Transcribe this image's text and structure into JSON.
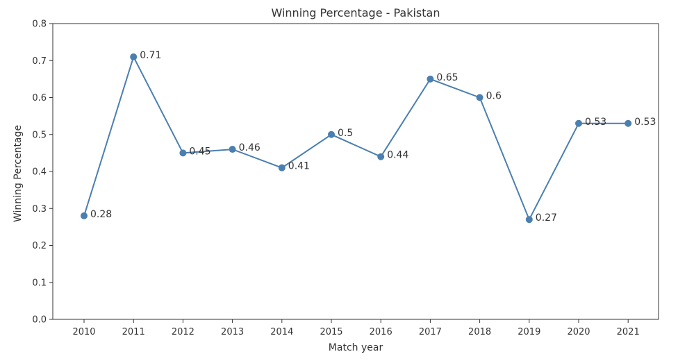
{
  "chart_data": {
    "type": "line",
    "title": "Winning Percentage - Pakistan",
    "xlabel": "Match year",
    "ylabel": "Winning Percentage",
    "x": [
      "2010",
      "2011",
      "2012",
      "2013",
      "2014",
      "2015",
      "2016",
      "2017",
      "2018",
      "2019",
      "2020",
      "2021"
    ],
    "values": [
      0.28,
      0.71,
      0.45,
      0.46,
      0.41,
      0.5,
      0.44,
      0.65,
      0.6,
      0.27,
      0.53,
      0.53
    ],
    "data_labels": [
      "0.28",
      "0.71",
      "0.45",
      "0.46",
      "0.41",
      "0.5",
      "0.44",
      "0.65",
      "0.6",
      "0.27",
      "0.53",
      "0.53"
    ],
    "ylim": [
      0.0,
      0.8
    ],
    "y_ticks": [
      "0.0",
      "0.1",
      "0.2",
      "0.3",
      "0.4",
      "0.5",
      "0.6",
      "0.7",
      "0.8"
    ],
    "grid": false,
    "line_color": "#4a7fb0",
    "marker_color": "#4a7fb0"
  }
}
